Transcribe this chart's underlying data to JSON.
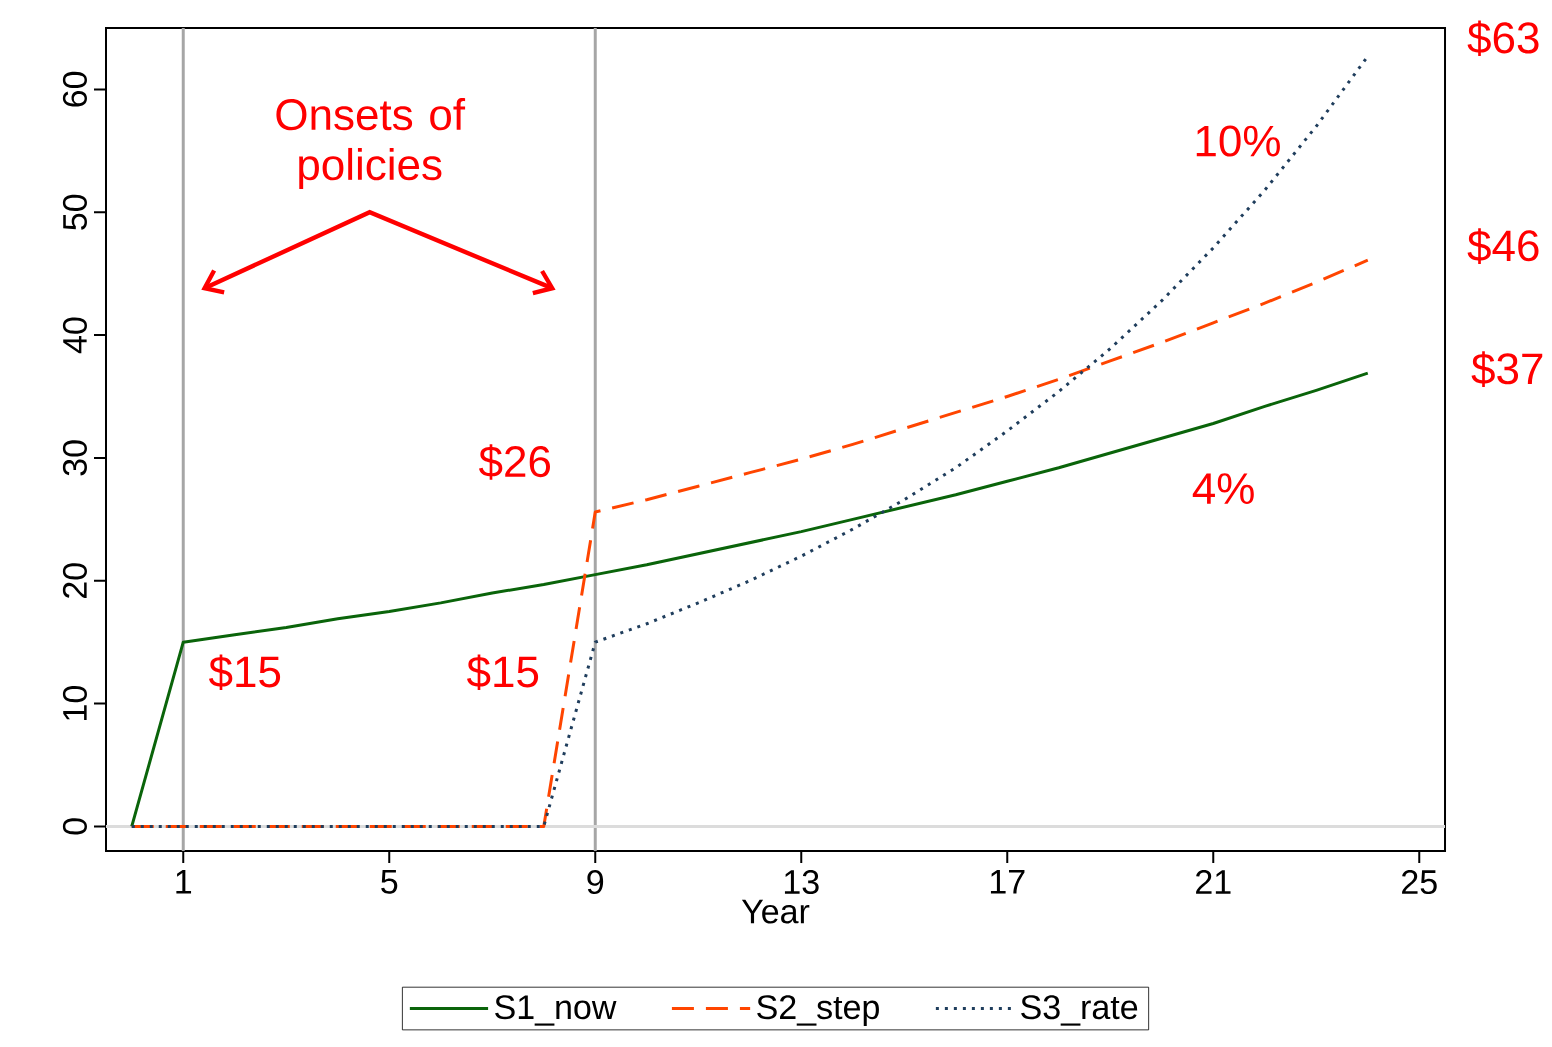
{
  "chart_data": {
    "type": "line",
    "xlabel": "Year",
    "xlim": [
      -0.5,
      25.5
    ],
    "ylim": [
      -2,
      65
    ],
    "xticks": [
      1,
      5,
      9,
      13,
      17,
      21,
      25
    ],
    "yticks": [
      0,
      10,
      20,
      30,
      40,
      50,
      60
    ],
    "grid": false,
    "legend": "bottom",
    "marker": "none",
    "series": [
      {
        "name": "S1_now",
        "color": "#0a640a",
        "line_style": "solid",
        "x": [
          0,
          1,
          2,
          3,
          4,
          5,
          6,
          7,
          8,
          9,
          10,
          11,
          12,
          13,
          14,
          15,
          16,
          17,
          18,
          19,
          20,
          21,
          22,
          23,
          24
        ],
        "values": [
          0,
          15,
          15.6,
          16.2,
          16.9,
          17.5,
          18.2,
          19.0,
          19.7,
          20.5,
          21.3,
          22.2,
          23.1,
          24.0,
          25.0,
          26.0,
          27.0,
          28.1,
          29.2,
          30.4,
          31.6,
          32.8,
          34.2,
          35.5,
          36.9
        ]
      },
      {
        "name": "S2_step",
        "color": "#ff4500",
        "line_style": "dashed",
        "x": [
          0,
          1,
          2,
          3,
          4,
          5,
          6,
          7,
          8,
          9,
          10,
          11,
          12,
          13,
          14,
          15,
          16,
          17,
          18,
          19,
          20,
          21,
          22,
          23,
          24
        ],
        "values": [
          0,
          0,
          0,
          0,
          0,
          0,
          0,
          0,
          0,
          25.6,
          26.6,
          27.7,
          28.8,
          29.9,
          31.1,
          32.4,
          33.7,
          35.0,
          36.4,
          37.9,
          39.4,
          41.0,
          42.6,
          44.3,
          46.1
        ]
      },
      {
        "name": "S3_rate",
        "color": "#1f3d5c",
        "line_style": "dotted",
        "x": [
          0,
          1,
          2,
          3,
          4,
          5,
          6,
          7,
          8,
          9,
          10,
          11,
          12,
          13,
          14,
          15,
          16,
          17,
          18,
          19,
          20,
          21,
          22,
          23,
          24
        ],
        "values": [
          0,
          0,
          0,
          0,
          0,
          0,
          0,
          0,
          0,
          15,
          16.5,
          18.2,
          20.0,
          22.0,
          24.2,
          26.6,
          29.2,
          32.2,
          35.4,
          38.9,
          42.8,
          47.1,
          51.8,
          57.0,
          62.7
        ]
      }
    ],
    "ref_lines": [
      {
        "axis": "x",
        "value": 1,
        "color": "#a6a6a6"
      },
      {
        "axis": "x",
        "value": 9,
        "color": "#a6a6a6"
      },
      {
        "axis": "y",
        "value": 0,
        "color": "#dcdcdc"
      }
    ],
    "annotations": [
      "Onsets of policies",
      "10%",
      "4%",
      {
        "text": "$15",
        "x": 1,
        "y": 15
      },
      {
        "text": "$15",
        "x": 9,
        "y": 15
      },
      {
        "text": "$26",
        "x": 9,
        "y": 25.6
      },
      {
        "text": "$63",
        "x": 24,
        "y": 62.7
      },
      {
        "text": "$46",
        "x": 24,
        "y": 46.1
      },
      {
        "text": "$37",
        "x": 24,
        "y": 36.9
      }
    ]
  }
}
